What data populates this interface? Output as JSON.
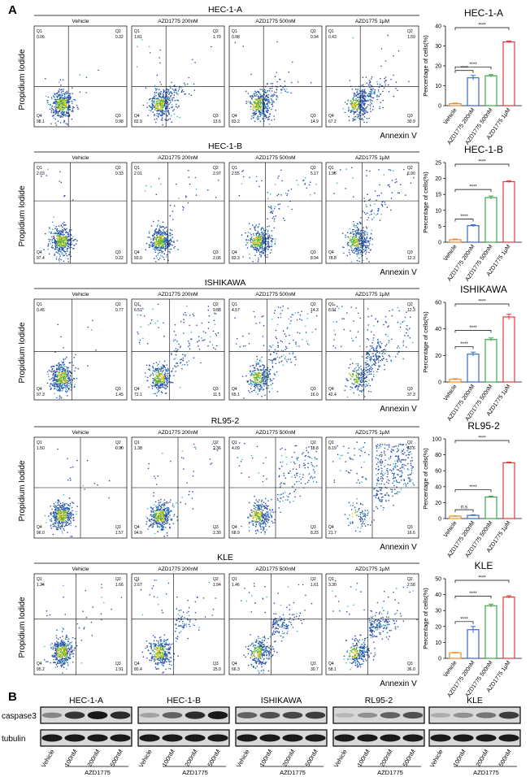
{
  "panel_labels": [
    "A",
    "B"
  ],
  "flow": {
    "axis_y": "Propidium Iodide",
    "axis_x": "Annexin V",
    "conditions": [
      "Vehicle",
      "AZD1775 200nM",
      "AZD1775 500nM",
      "AZD1775 1μM"
    ],
    "quadrant_labels": [
      "Q1",
      "Q2",
      "Q3",
      "Q4"
    ],
    "rows": [
      {
        "cell": "HEC-1-A",
        "values": [
          {
            "q1": "0.06",
            "q2": "0.32",
            "q3": "0.98",
            "q4": "98.1"
          },
          {
            "q1": "1.81",
            "q2": "1.70",
            "q3": "13.6",
            "q4": "82.9"
          },
          {
            "q1": "0.98",
            "q2": "0.94",
            "q3": "14.9",
            "q4": "83.2"
          },
          {
            "q1": "0.43",
            "q2": "1.59",
            "q3": "30.9",
            "q4": "67.2"
          }
        ]
      },
      {
        "cell": "HEC-1-B",
        "values": [
          {
            "q1": "2.03",
            "q2": "0.33",
            "q3": "0.22",
            "q4": "97.4"
          },
          {
            "q1": "2.01",
            "q2": "2.97",
            "q3": "2.06",
            "q4": "93.0"
          },
          {
            "q1": "2.55",
            "q2": "5.17",
            "q3": "8.94",
            "q4": "83.3"
          },
          {
            "q1": "1.96",
            "q2": "6.90",
            "q3": "12.3",
            "q4": "78.8"
          }
        ]
      },
      {
        "cell": "ISHIKAWA",
        "values": [
          {
            "q1": "0.45",
            "q2": "0.77",
            "q3": "1.45",
            "q4": "97.3"
          },
          {
            "q1": "6.51",
            "q2": "9.88",
            "q3": "11.5",
            "q4": "72.1"
          },
          {
            "q1": "4.57",
            "q2": "14.3",
            "q3": "16.0",
            "q4": "65.1"
          },
          {
            "q1": "8.01",
            "q2": "12.3",
            "q3": "37.3",
            "q4": "42.4"
          }
        ]
      },
      {
        "cell": "RL95-2",
        "values": [
          {
            "q1": "1.50",
            "q2": "0.90",
            "q3": "1.57",
            "q4": "96.0"
          },
          {
            "q1": "1.38",
            "q2": "2.36",
            "q3": "2.30",
            "q4": "94.0"
          },
          {
            "q1": "4.09",
            "q2": "18.8",
            "q3": "8.23",
            "q4": "68.9"
          },
          {
            "q1": "8.19",
            "q2": "53.6",
            "q3": "16.6",
            "q4": "21.7"
          }
        ]
      },
      {
        "cell": "KLE",
        "values": [
          {
            "q1": "1.24",
            "q2": "1.66",
            "q3": "1.91",
            "q4": "95.2"
          },
          {
            "q1": "2.67",
            "q2": "1.94",
            "q3": "15.0",
            "q4": "80.4"
          },
          {
            "q1": "1.46",
            "q2": "1.61",
            "q3": "30.7",
            "q4": "66.3"
          },
          {
            "q1": "3.30",
            "q2": "2.58",
            "q3": "36.0",
            "q4": "58.1"
          }
        ]
      }
    ]
  },
  "chart_data": [
    {
      "type": "bar",
      "title": "HEC-1-A",
      "ylabel": "Percentage of cells(%)",
      "categories": [
        "Vehicle",
        "AZD1775 200nM",
        "AZD1775 500nM",
        "AZD1775 1μM"
      ],
      "values": [
        1,
        14,
        15,
        32
      ],
      "errors": [
        0.3,
        1.2,
        0.6,
        0.5
      ],
      "ylim": [
        0,
        40
      ],
      "yticks": [
        0,
        10,
        20,
        30,
        40
      ],
      "significance": [
        {
          "from": 0,
          "to": 1,
          "label": "****"
        },
        {
          "from": 0,
          "to": 2,
          "label": "****"
        },
        {
          "from": 0,
          "to": 3,
          "label": "****"
        }
      ]
    },
    {
      "type": "bar",
      "title": "HEC-1-B",
      "ylabel": "Percentage of cells(%)",
      "categories": [
        "Vehicle",
        "AZD1775 200nM",
        "AZD1775 500nM",
        "AZD1775 1μM"
      ],
      "values": [
        0.8,
        5.2,
        14,
        19
      ],
      "errors": [
        0.2,
        0.3,
        0.5,
        0.3
      ],
      "ylim": [
        0,
        25
      ],
      "yticks": [
        0,
        5,
        10,
        15,
        20,
        25
      ],
      "significance": [
        {
          "from": 0,
          "to": 1,
          "label": "****"
        },
        {
          "from": 0,
          "to": 2,
          "label": "****"
        },
        {
          "from": 0,
          "to": 3,
          "label": "****"
        }
      ]
    },
    {
      "type": "bar",
      "title": "ISHIKAWA",
      "ylabel": "Percentage of cells(%)",
      "categories": [
        "Vehicle",
        "AZD1775 200nM",
        "AZD1775 500nM",
        "AZD1775 1μM"
      ],
      "values": [
        2,
        21,
        32,
        49
      ],
      "errors": [
        0.5,
        1.5,
        1.2,
        2.0
      ],
      "ylim": [
        0,
        60
      ],
      "yticks": [
        0,
        20,
        40,
        60
      ],
      "significance": [
        {
          "from": 0,
          "to": 1,
          "label": "****"
        },
        {
          "from": 0,
          "to": 2,
          "label": "****"
        },
        {
          "from": 0,
          "to": 3,
          "label": "****"
        }
      ]
    },
    {
      "type": "bar",
      "title": "RL95-2",
      "ylabel": "Percentage of cells(%)",
      "categories": [
        "Vehicle",
        "AZD1775 200nM",
        "AZD1775 500nM",
        "AZD1775 1μM"
      ],
      "values": [
        3,
        4,
        27,
        70
      ],
      "errors": [
        0.5,
        0.7,
        1.0,
        1.0
      ],
      "ylim": [
        0,
        100
      ],
      "yticks": [
        0,
        20,
        40,
        60,
        80,
        100
      ],
      "significance": [
        {
          "from": 0,
          "to": 1,
          "label": "n.s"
        },
        {
          "from": 0,
          "to": 2,
          "label": "****"
        },
        {
          "from": 0,
          "to": 3,
          "label": "****"
        }
      ]
    },
    {
      "type": "bar",
      "title": "KLE",
      "ylabel": "Percentage of cells(%)",
      "categories": [
        "Vehicle",
        "AZD1775 200nM",
        "AZD1775 500nM",
        "AZD1775 1μM"
      ],
      "values": [
        3.5,
        18,
        33,
        38.5
      ],
      "errors": [
        0.3,
        2.0,
        1.0,
        0.8
      ],
      "ylim": [
        0,
        50
      ],
      "yticks": [
        0,
        10,
        20,
        30,
        40,
        50
      ],
      "significance": [
        {
          "from": 0,
          "to": 1,
          "label": "****"
        },
        {
          "from": 0,
          "to": 2,
          "label": "****"
        },
        {
          "from": 0,
          "to": 3,
          "label": "****"
        }
      ]
    }
  ],
  "bar_colors": [
    "#f08a2c",
    "#3a6cc4",
    "#3aa64a",
    "#e03a3a"
  ],
  "western": {
    "groups": [
      {
        "cell": "HEC-1-A",
        "lanes": [
          "Vehicle",
          "100nM",
          "200nM",
          "500nM"
        ],
        "caspase3": [
          0.35,
          0.8,
          0.95,
          0.85
        ]
      },
      {
        "cell": "HEC-1-B",
        "lanes": [
          "Vehicle",
          "100nM",
          "200nM",
          "500nM"
        ],
        "caspase3": [
          0.2,
          0.55,
          0.85,
          0.95
        ]
      },
      {
        "cell": "ISHIKAWA",
        "lanes": [
          "Vehicle",
          "100nM",
          "200nM",
          "500nM"
        ],
        "caspase3": [
          0.55,
          0.65,
          0.7,
          0.75
        ]
      },
      {
        "cell": "RL95-2",
        "lanes": [
          "Vehicle",
          "100nM",
          "200nM",
          "500nM"
        ],
        "caspase3": [
          0.1,
          0.3,
          0.55,
          0.65
        ]
      },
      {
        "cell": "KLE",
        "lanes": [
          "Vehicle",
          "100nM",
          "200nM",
          "500nM"
        ],
        "caspase3": [
          0.15,
          0.3,
          0.45,
          0.75
        ]
      }
    ],
    "row_labels": [
      "caspase3",
      "tubulin"
    ],
    "drug_label": "AZD1775"
  }
}
